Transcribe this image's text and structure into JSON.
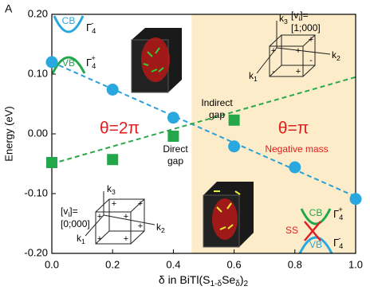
{
  "chart_data": {
    "type": "scatter",
    "xlabel": [
      "δ in BiTl(S",
      {
        "sub": "1-δ"
      },
      "Se",
      {
        "sub": "δ"
      },
      ")",
      {
        "sub": "2"
      }
    ],
    "ylabel": "Energy (eV)",
    "xlim": [
      0,
      1
    ],
    "ylim": [
      -0.2,
      0.2
    ],
    "xticks": [
      {
        "value": 0,
        "label": "0.0"
      },
      {
        "value": 0.2,
        "label": "0.2"
      },
      {
        "value": 0.4,
        "label": "0.4"
      },
      {
        "value": 0.6,
        "label": "0.6"
      },
      {
        "value": 0.8,
        "label": "0.8"
      },
      {
        "value": 1,
        "label": "1.0"
      }
    ],
    "yticks": [
      {
        "value": -0.2,
        "label": "-0.20"
      },
      {
        "value": -0.1,
        "label": "-0.10"
      },
      {
        "value": 0,
        "label": "0.00"
      },
      {
        "value": 0.1,
        "label": "0.10"
      },
      {
        "value": 0.2,
        "label": "0.20"
      }
    ],
    "shaded_xrange": [
      0.46,
      1
    ],
    "shade_color": "#fcecc9",
    "series": [
      {
        "color": "#29a8e0",
        "marker": "circle",
        "x": [
          0,
          0.2,
          0.4,
          0.6,
          0.8,
          1
        ],
        "values": [
          0.12,
          0.074,
          0.027,
          -0.021,
          -0.056,
          -0.109
        ]
      },
      {
        "color": "#22a84a",
        "marker": "square",
        "x": [
          0,
          0.2,
          0.4,
          0.6
        ],
        "values": [
          -0.048,
          -0.043,
          -0.004,
          0.023
        ]
      }
    ],
    "fit_lines": [
      {
        "color": "#2a9fd8",
        "x": [
          0,
          1
        ],
        "values": [
          0.12,
          -0.105
        ]
      },
      {
        "color": "#2aa84a",
        "x": [
          0,
          1
        ],
        "values": [
          -0.05,
          0.095
        ]
      }
    ],
    "annotations": {
      "panel": "A",
      "theta_left": "θ=2π",
      "theta_right": "θ=π",
      "neg_mass": "Negative mass",
      "indirect": "Indirect",
      "indirect_2": "gap",
      "direct": "Direct",
      "direct_2": "gap",
      "cb_top": "CB",
      "vb_top": "VB",
      "g_top_minus": [
        "Γ",
        {
          "sub": "4"
        },
        {
          "sup": "-"
        }
      ],
      "g_top_plus": [
        "Γ",
        {
          "sub": "4"
        },
        {
          "sup": "+"
        }
      ],
      "cb_bot": "CB",
      "vb_bot": "VB",
      "ss": "SS",
      "g_bot_plus": [
        "Γ",
        {
          "sub": "4"
        },
        {
          "sup": "+"
        }
      ],
      "g_bot_minus": [
        "Γ",
        {
          "sub": "4"
        },
        {
          "sup": "-"
        }
      ],
      "vi_top": [
        "[v",
        {
          "sub": "i"
        },
        "]="
      ],
      "vi_top_val": "[1;000]",
      "vi_bot": [
        "[v",
        {
          "sub": "i"
        },
        "]="
      ],
      "vi_bot_val": "[0;000]",
      "k1_top": [
        "k",
        {
          "sub": "1"
        }
      ],
      "k2_top": [
        "k",
        {
          "sub": "2"
        }
      ],
      "k3_top": [
        "k",
        {
          "sub": "3"
        }
      ],
      "k1_bot": [
        "k",
        {
          "sub": "1"
        }
      ],
      "k2_bot": [
        "k",
        {
          "sub": "2"
        }
      ],
      "k3_bot": [
        "k",
        {
          "sub": "3"
        }
      ]
    },
    "signs_top": [
      "+",
      "+",
      "-",
      "+",
      "+",
      "-"
    ],
    "signs_bot": [
      "+",
      "+",
      "+",
      "+",
      "+",
      "+",
      "+"
    ]
  }
}
